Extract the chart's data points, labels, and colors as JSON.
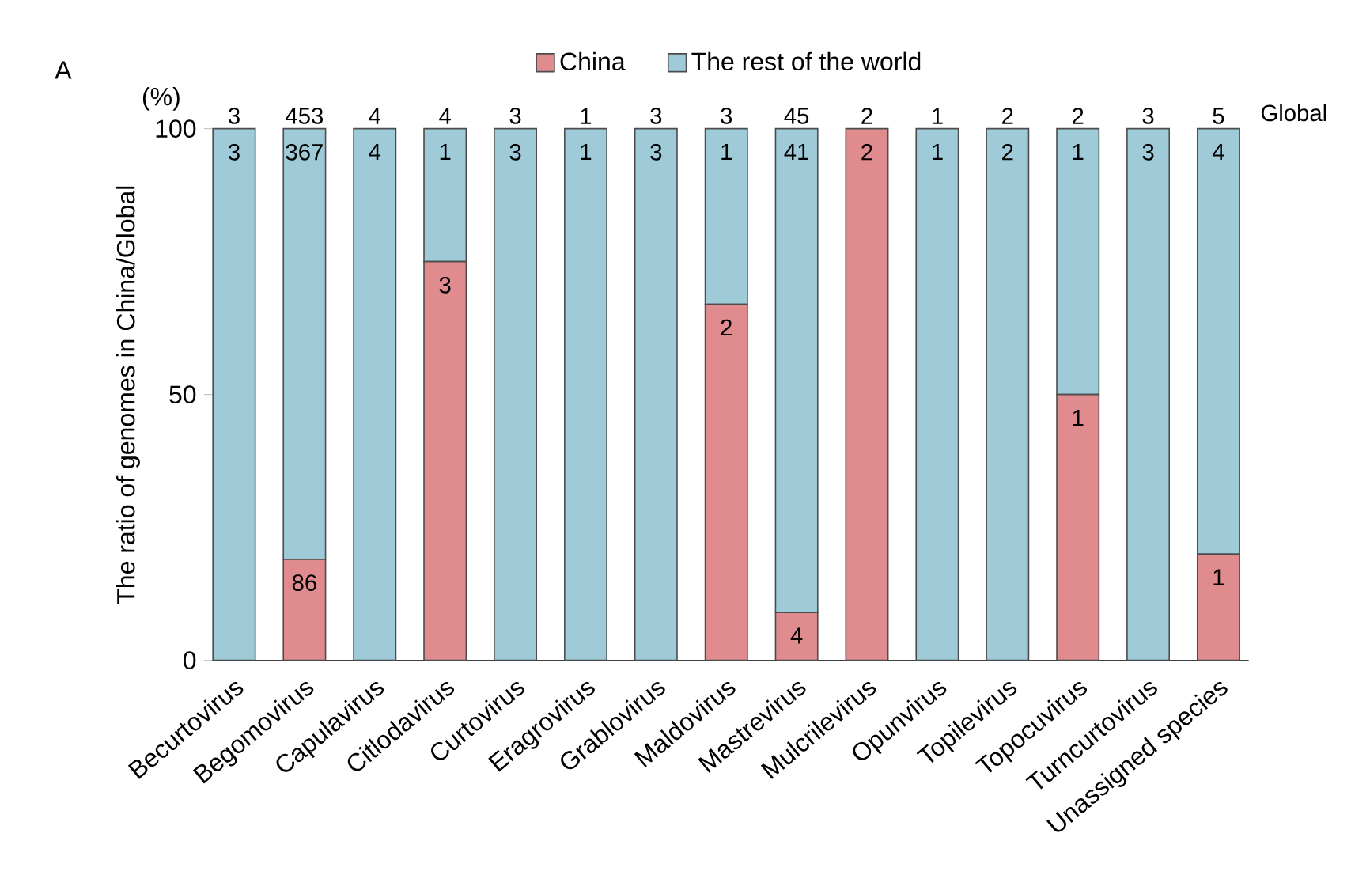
{
  "chart_data": {
    "type": "bar",
    "stacked": true,
    "legend": "top",
    "ylabel": "The ratio of genomes in China/Global",
    "categories": [
      "Becurtovirus",
      "Begomovirus",
      "Capulavirus",
      "Citlodavirus",
      "Curtovirus",
      "Eragrovirus",
      "Grablovirus",
      "Maldovirus",
      "Mastrevirus",
      "Mulcrilevirus",
      "Opunvirus",
      "Topilevirus",
      "Topocuvirus",
      "Turncurtovirus",
      "Unassigned species"
    ],
    "series": [
      {
        "name": "China",
        "color": "#e08c8f",
        "values": [
          0,
          19,
          0,
          75,
          0,
          0,
          0,
          67,
          9,
          100,
          0,
          0,
          50,
          0,
          20
        ]
      },
      {
        "name": "The rest of the world",
        "color": "#9fcbd9",
        "values": [
          100,
          81,
          100,
          25,
          100,
          100,
          100,
          33,
          91,
          0,
          100,
          100,
          50,
          100,
          80
        ]
      }
    ],
    "ylim": [
      0,
      100
    ],
    "yticks": [
      0,
      50,
      100
    ],
    "annotations": [
      "A",
      "Global",
      "(%)",
      {
        "text": "3",
        "x": "Becurtovirus",
        "y": 100
      },
      {
        "text": "453",
        "x": "Begomovirus",
        "y": 100
      },
      {
        "text": "4",
        "x": "Capulavirus",
        "y": 100
      },
      {
        "text": "4",
        "x": "Citlodavirus",
        "y": 100
      },
      {
        "text": "3",
        "x": "Curtovirus",
        "y": 100
      },
      {
        "text": "1",
        "x": "Eragrovirus",
        "y": 100
      },
      {
        "text": "3",
        "x": "Grablovirus",
        "y": 100
      },
      {
        "text": "3",
        "x": "Maldovirus",
        "y": 100
      },
      {
        "text": "45",
        "x": "Mastrevirus",
        "y": 100
      },
      {
        "text": "2",
        "x": "Mulcrilevirus",
        "y": 100
      },
      {
        "text": "1",
        "x": "Opunvirus",
        "y": 100
      },
      {
        "text": "2",
        "x": "Topilevirus",
        "y": 100
      },
      {
        "text": "2",
        "x": "Topocuvirus",
        "y": 100
      },
      {
        "text": "3",
        "x": "Turncurtovirus",
        "y": 100
      },
      {
        "text": "5",
        "x": "Unassigned species",
        "y": 100
      },
      {
        "text": "3",
        "x": "Becurtovirus",
        "y": 100
      },
      {
        "text": "367",
        "x": "Begomovirus",
        "y": 100
      },
      {
        "text": "4",
        "x": "Capulavirus",
        "y": 100
      },
      {
        "text": "1",
        "x": "Citlodavirus",
        "y": 100
      },
      {
        "text": "3",
        "x": "Curtovirus",
        "y": 100
      },
      {
        "text": "1",
        "x": "Eragrovirus",
        "y": 100
      },
      {
        "text": "3",
        "x": "Grablovirus",
        "y": 100
      },
      {
        "text": "1",
        "x": "Maldovirus",
        "y": 100
      },
      {
        "text": "41",
        "x": "Mastrevirus",
        "y": 100
      },
      {
        "text": "1",
        "x": "Opunvirus",
        "y": 100
      },
      {
        "text": "2",
        "x": "Topilevirus",
        "y": 100
      },
      {
        "text": "1",
        "x": "Topocuvirus",
        "y": 100
      },
      {
        "text": "3",
        "x": "Turncurtovirus",
        "y": 100
      },
      {
        "text": "4",
        "x": "Unassigned species",
        "y": 100
      },
      {
        "text": "86",
        "x": "Begomovirus",
        "y": 19
      },
      {
        "text": "3",
        "x": "Citlodavirus",
        "y": 75
      },
      {
        "text": "2",
        "x": "Maldovirus",
        "y": 67
      },
      {
        "text": "4",
        "x": "Mastrevirus",
        "y": 9
      },
      {
        "text": "2",
        "x": "Mulcrilevirus",
        "y": 100
      },
      {
        "text": "1",
        "x": "Topocuvirus",
        "y": 50
      },
      {
        "text": "1",
        "x": "Unassigned species",
        "y": 20
      }
    ]
  }
}
